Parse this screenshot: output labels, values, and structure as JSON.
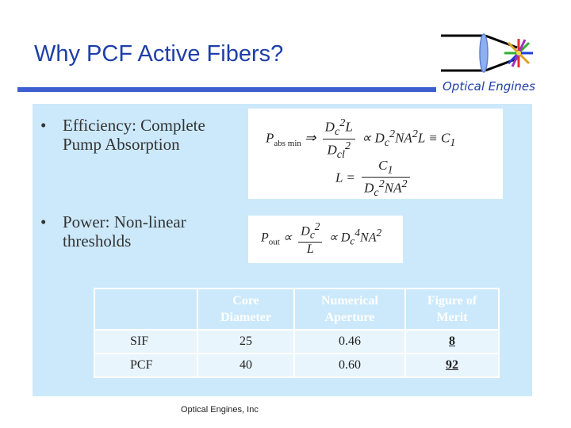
{
  "header": {
    "title": "Why PCF Active Fibers?",
    "brand": "Optical Engines"
  },
  "bullets": [
    {
      "marker": "•",
      "line1": "Efficiency:  Complete",
      "line2": "Pump Absorption"
    },
    {
      "marker": "•",
      "line1": "Power:  Non-linear",
      "line2": "thresholds"
    }
  ],
  "table": {
    "headers": [
      {
        "line1": "",
        "line2": ""
      },
      {
        "line1": "Core",
        "line2": "Diameter"
      },
      {
        "line1": "Numerical",
        "line2": "Aperture"
      },
      {
        "line1": "Figure of",
        "line2": "Merit"
      }
    ],
    "rows": [
      {
        "label": "SIF",
        "core": "25",
        "na": "0.46",
        "merit": "8"
      },
      {
        "label": "PCF",
        "core": "40",
        "na": "0.60",
        "merit": "92"
      }
    ]
  },
  "footer": {
    "text": "Optical Engines, Inc"
  },
  "colors": {
    "title": "#1f3fa8",
    "rule": "#3f5fd0",
    "panel": "#cce9fb"
  }
}
